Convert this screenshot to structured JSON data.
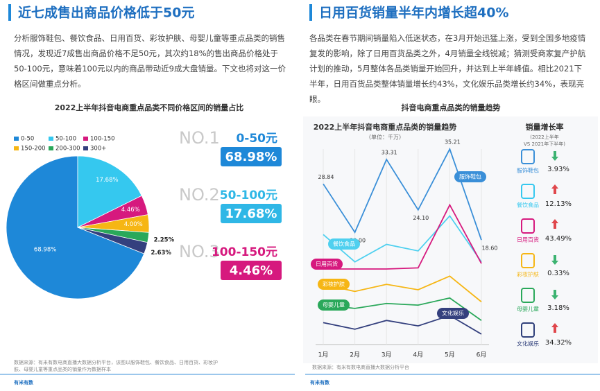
{
  "left": {
    "title": "近七成售出商品价格低于50元",
    "paragraph": "分析服饰鞋包、餐饮食品、日用百货、彩妆护肤、母婴儿童等重点品类的销售情况，发现近7成售出商品价格不足50元，其次约18%的售出商品价格处于50-100元，意味着100元以内的商品带动近9成大盘销量。下文也将对这一价格区间做重点分析。",
    "ranks": [
      {
        "rank": "NO.1",
        "range": "0-50元",
        "share": "68.98%",
        "color": "#1e88d8"
      },
      {
        "rank": "NO.2",
        "range": "50-100元",
        "share": "17.68%",
        "color": "#2fb7e6"
      },
      {
        "rank": "NO.3",
        "range": "100-150元",
        "share": "4.46%",
        "color": "#d6197e"
      }
    ],
    "source": "数据来源：有米有数电商直播大数据分析平台，该图以服饰鞋包、餐饮食品、日用百货、彩妆护肤、母婴儿童等重点品类的销量作为数据样本",
    "logo": "有米有数"
  },
  "right": {
    "title": "日用百货销量半年内增长超40%",
    "paragraph": "各品类在春节期间销量陷入低迷状态，在3月开始迅猛上涨，受到全国多地疫情复发的影响，除了日用百货品类之外，4月销量全线锐减；猜测受商家复产护航计划的推动，5月整体各品类销量开始回升，并达到上半年峰值。相比2021下半年，日用百货品类整体销量增长约43%，文化娱乐品类增长约34%，表现亮眼。",
    "header": "抖音电商重点品类的销量趋势",
    "growth_title": "销量增长率",
    "growth_note1": "(2022上半年",
    "growth_note2": "VS  2021年下半年)",
    "growth": [
      {
        "name": "服饰鞋包",
        "rate": "3.93%",
        "direction": "down",
        "color": "#3a8fd8"
      },
      {
        "name": "餐饮食品",
        "rate": "12.13%",
        "direction": "up",
        "color": "#35c8ef"
      },
      {
        "name": "日用百货",
        "rate": "43.49%",
        "direction": "up",
        "color": "#d6197e"
      },
      {
        "name": "彩妆护肤",
        "rate": "0.33%",
        "direction": "down",
        "color": "#f6b614"
      },
      {
        "name": "母婴儿童",
        "rate": "3.18%",
        "direction": "down",
        "color": "#2aa85a"
      },
      {
        "name": "文化娱乐",
        "rate": "34.32%",
        "direction": "up",
        "color": "#2f3f7a"
      }
    ],
    "source": "数据来源：有米有数电商直播大数据分析平台",
    "logo": "有米有数"
  },
  "chart_data": [
    {
      "type": "pie",
      "title": "2022上半年抖音电商重点品类不同价格区间的销量占比",
      "categories": [
        "0-50",
        "50-100",
        "100-150",
        "150-200",
        "200-300",
        "300+"
      ],
      "values": [
        68.98,
        17.68,
        4.46,
        4.0,
        2.25,
        2.63
      ],
      "value_labels": [
        "68.98%",
        "17.68%",
        "4.46%",
        "4.00%",
        "2.25%",
        "2.63%"
      ],
      "colors": [
        "#1e88d8",
        "#35c8ef",
        "#d6197e",
        "#f6b614",
        "#2aa85a",
        "#34407e"
      ]
    },
    {
      "type": "line",
      "title": "2022上半年抖音电商重点品类的销量趋势",
      "subtitle": "（单位：千万）",
      "categories": [
        "1月",
        "2月",
        "3月",
        "4月",
        "5月",
        "6月"
      ],
      "ylim": [
        0,
        38
      ],
      "series": [
        {
          "name": "服饰鞋包",
          "color": "#3a8fd8",
          "values": [
            28.84,
            20.0,
            33.31,
            24.1,
            35.21,
            18.6
          ],
          "value_labels": [
            "28.84",
            "20.00",
            "33.31",
            "24.10",
            "35.21",
            "18.60"
          ]
        },
        {
          "name": "餐饮食品",
          "color": "#4fd0ef",
          "values": [
            19.6,
            14.6,
            17.8,
            16.6,
            23.0,
            14.6
          ]
        },
        {
          "name": "日用百货",
          "color": "#d6197e",
          "values": [
            13.3,
            13.3,
            13.3,
            13.5,
            25.0,
            14.3
          ]
        },
        {
          "name": "彩妆护肤",
          "color": "#f6b614",
          "values": [
            10.5,
            9.2,
            10.5,
            9.5,
            12.0,
            7.3
          ]
        },
        {
          "name": "母婴儿童",
          "color": "#2aa85a",
          "values": [
            6.7,
            6.1,
            7.0,
            6.7,
            8.0,
            3.9
          ]
        },
        {
          "name": "文化娱乐",
          "color": "#34407e",
          "values": [
            3.5,
            2.3,
            3.9,
            2.9,
            4.8,
            1.4
          ]
        }
      ]
    }
  ]
}
